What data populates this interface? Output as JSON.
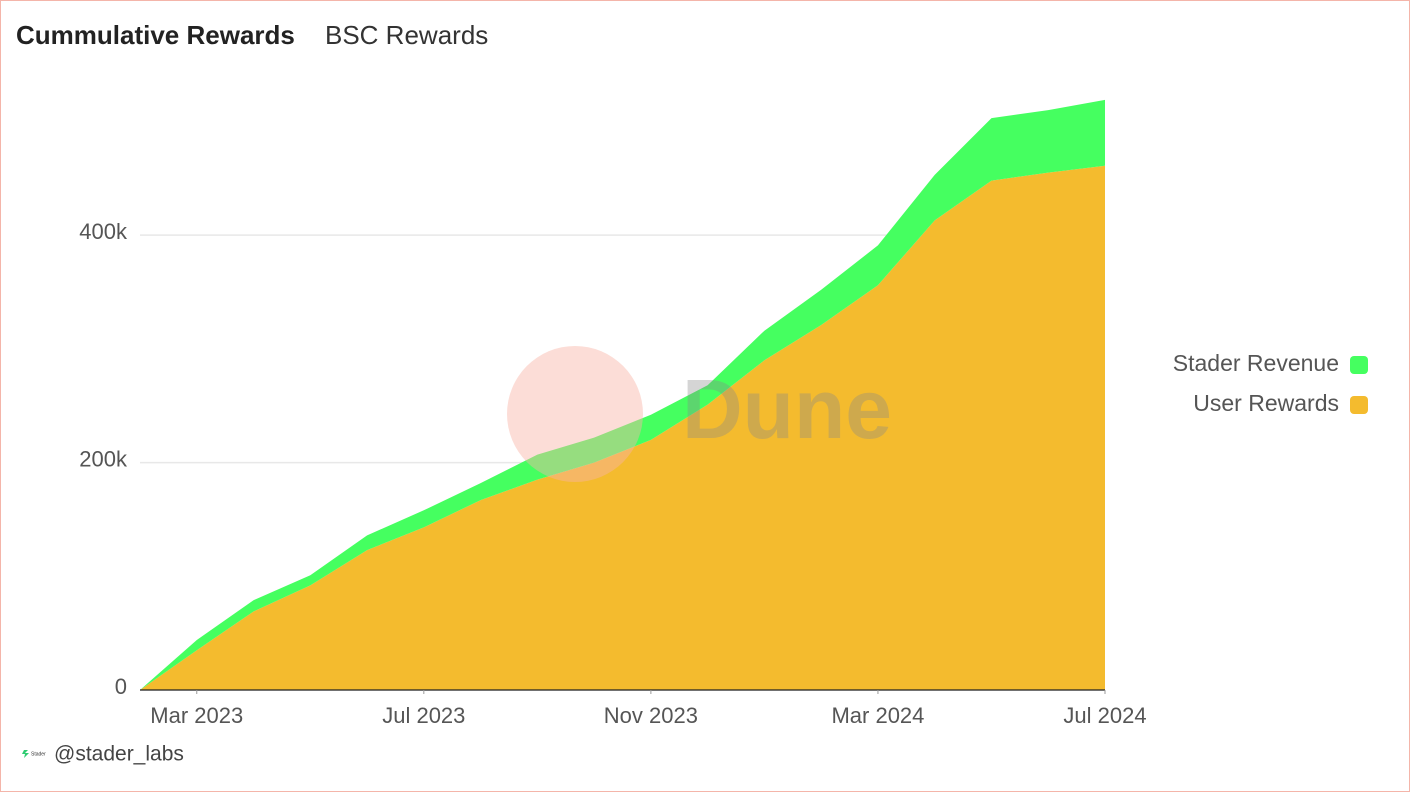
{
  "chart_data": {
    "type": "stacked-area",
    "title": "Cummulative Rewards",
    "subtitle": "BSC Rewards",
    "x": [
      "2023-02",
      "2023-03",
      "2023-04",
      "2023-05",
      "2023-06",
      "2023-07",
      "2023-08",
      "2023-09",
      "2023-10",
      "2023-11",
      "2023-12",
      "2024-01",
      "2024-02",
      "2024-03",
      "2024-04",
      "2024-05",
      "2024-06",
      "2024-07"
    ],
    "series": [
      {
        "name": "Stader Revenue",
        "color": "#45ff60",
        "values": [
          0,
          9000,
          10000,
          9000,
          13000,
          15000,
          15000,
          22000,
          22000,
          22000,
          17000,
          26000,
          31000,
          35000,
          40000,
          55000,
          55000,
          58000
        ]
      },
      {
        "name": "User Rewards",
        "color": "#f4bb2e",
        "values": [
          0,
          35000,
          69000,
          92000,
          123000,
          143000,
          167000,
          185000,
          200000,
          220000,
          251000,
          290000,
          321000,
          356000,
          413000,
          448000,
          455000,
          461000
        ]
      }
    ],
    "stack_order": [
      "User Rewards",
      "Stader Revenue"
    ],
    "ylim": [
      0,
      540000
    ],
    "yticks": [
      0,
      {
        "value": 200000,
        "label": "200k"
      },
      {
        "value": 400000,
        "label": "400k"
      }
    ],
    "xticks": [
      {
        "value": "2023-03",
        "label": "Mar 2023"
      },
      {
        "value": "2023-07",
        "label": "Jul 2023"
      },
      {
        "value": "2023-11",
        "label": "Nov 2023"
      },
      {
        "value": "2024-03",
        "label": "Mar 2024"
      },
      {
        "value": "2024-07",
        "label": "Jul 2024"
      }
    ],
    "grid": true,
    "legend": "right",
    "watermark": "Dune",
    "footer": "@stader_labs",
    "footer_logo": "Stader"
  }
}
